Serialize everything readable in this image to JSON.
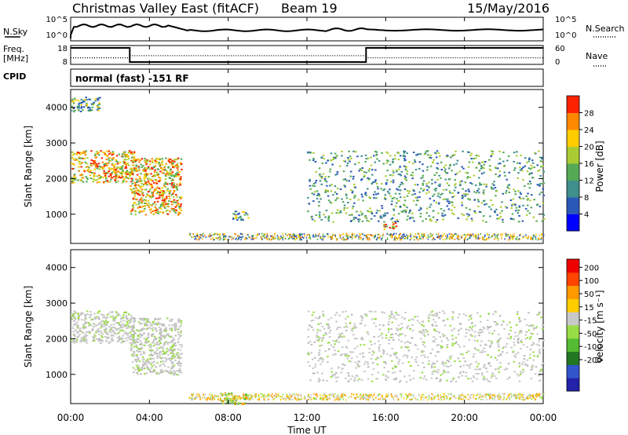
{
  "header": {
    "title": "Christmas Valley East (fitACF)",
    "beam": "Beam 19",
    "date": "15/May/2016"
  },
  "top_panels": {
    "nsky": {
      "label": "N.Sky",
      "tick_top": "10^5",
      "tick_bottom": "10^0",
      "right_tick_top": "10^5",
      "right_tick_bottom": "10^0",
      "right_label": "N.Search"
    },
    "freq": {
      "label_line1": "Freq.",
      "label_line2": "[MHz]",
      "tick_top": "18",
      "tick_bottom": "8",
      "right_tick_top": "60",
      "right_tick_bottom": "0",
      "right_label": "Nave",
      "steps_hours": [
        0,
        3,
        15,
        24
      ],
      "freq_levels": [
        1,
        0,
        1
      ],
      "nave_levels": [
        0.3,
        0.45,
        0.3
      ]
    },
    "cpid": {
      "label": "CPID",
      "text": "normal (fast) -151 RF"
    }
  },
  "x_axis": {
    "label": "Time UT",
    "ticks": [
      "00:00",
      "04:00",
      "08:00",
      "12:00",
      "16:00",
      "20:00",
      "00:00"
    ],
    "range_hours": [
      0,
      24
    ]
  },
  "chart_data": [
    {
      "type": "heatmap",
      "panel": "power",
      "ylabel": "Slant Range [km]",
      "yticks": [
        "1000",
        "2000",
        "3000",
        "4000"
      ],
      "ylim": [
        180,
        4500
      ],
      "colorbar_label": "Power [dB]",
      "colorbar_ticks": [
        "4",
        "8",
        "12",
        "16",
        "20",
        "24",
        "28"
      ],
      "colorbar_colors": [
        "#0000ff",
        "#2a58b8",
        "#3f8f8c",
        "#55aa55",
        "#aacc33",
        "#ffcc00",
        "#ff8800",
        "#ff2200"
      ],
      "echo_regions": [
        {
          "x": [
            0,
            1.5
          ],
          "y": [
            3900,
            4300
          ],
          "level": "mid"
        },
        {
          "x": [
            0,
            3.2
          ],
          "y": [
            1900,
            2800
          ],
          "level": "high"
        },
        {
          "x": [
            3.0,
            5.6
          ],
          "y": [
            1000,
            2600
          ],
          "level": "high"
        },
        {
          "x": [
            8.2,
            9.0
          ],
          "y": [
            850,
            1100
          ],
          "level": "mid"
        },
        {
          "x": [
            12,
            24
          ],
          "y": [
            800,
            2800
          ],
          "level": "low"
        },
        {
          "x": [
            15.8,
            16.5
          ],
          "y": [
            600,
            800
          ],
          "level": "high"
        }
      ]
    },
    {
      "type": "heatmap",
      "panel": "velocity",
      "ylabel": "Slant Range [km]",
      "yticks": [
        "1000",
        "2000",
        "3000",
        "4000"
      ],
      "ylim": [
        180,
        4500
      ],
      "colorbar_label": "Velocity [m s⁻¹]",
      "colorbar_ticks": [
        "200",
        "100",
        "50",
        "15",
        "-15",
        "-50",
        "-100",
        "-200"
      ],
      "colorbar_colors": [
        "#2222aa",
        "#3355cc",
        "#227722",
        "#55bb33",
        "#99dd44",
        "#c8c8c8",
        "#ffcc00",
        "#ff9900",
        "#ff4400",
        "#ee0000"
      ],
      "echo_regions": [
        {
          "x": [
            0,
            3.2
          ],
          "y": [
            1900,
            2800
          ],
          "level": "ground"
        },
        {
          "x": [
            3.0,
            5.6
          ],
          "y": [
            1000,
            2600
          ],
          "level": "ground"
        },
        {
          "x": [
            12,
            24
          ],
          "y": [
            800,
            2800
          ],
          "level": "ground"
        },
        {
          "x": [
            7.5,
            9.0
          ],
          "y": [
            180,
            500
          ],
          "level": "positive"
        }
      ]
    }
  ]
}
